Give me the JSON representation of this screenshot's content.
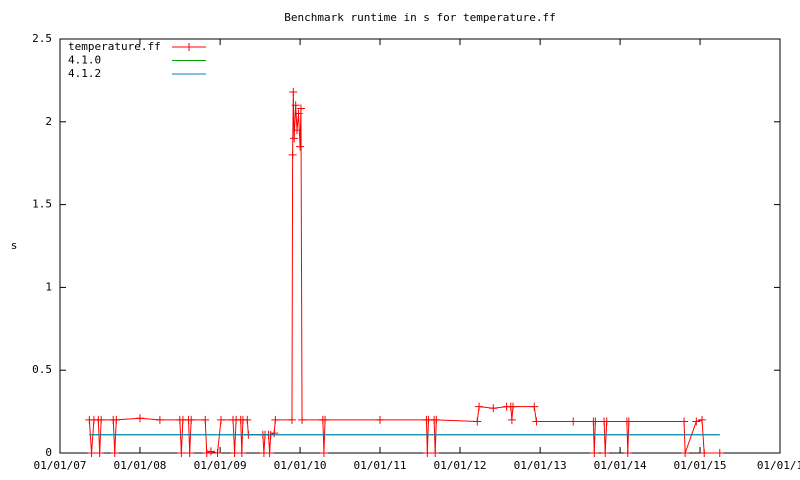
{
  "chart_data": {
    "type": "line",
    "title": "Benchmark runtime in s for temperature.ff",
    "ylabel": "s",
    "xlim": [
      "2007-01-01",
      "2016-01-01"
    ],
    "xticks": [
      {
        "value": "2007-01-01",
        "label": "01/01/07"
      },
      {
        "value": "2008-01-01",
        "label": "01/01/08"
      },
      {
        "value": "2009-01-01",
        "label": "01/01/09"
      },
      {
        "value": "2010-01-01",
        "label": "01/01/10"
      },
      {
        "value": "2011-01-01",
        "label": "01/01/11"
      },
      {
        "value": "2012-01-01",
        "label": "01/01/12"
      },
      {
        "value": "2013-01-01",
        "label": "01/01/13"
      },
      {
        "value": "2014-01-01",
        "label": "01/01/14"
      },
      {
        "value": "2015-01-01",
        "label": "01/01/15"
      },
      {
        "value": "2016-01-01",
        "label": "01/01/1"
      }
    ],
    "ylim": [
      0,
      2.5
    ],
    "yticks": [
      0,
      0.5,
      1,
      {
        "value": 1.5,
        "label": "1.5"
      },
      2,
      2.5
    ],
    "legend": "top-left",
    "series": [
      {
        "name": "temperature.ff",
        "color": "#ff0000",
        "points": true,
        "x": [
          "2007-05-15",
          "2007-05-25",
          "2007-06-05",
          "2007-06-25",
          "2007-07-01",
          "2007-07-08",
          "2007-09-01",
          "2007-09-08",
          "2007-09-15",
          "2008-01-01",
          "2008-04-01",
          "2008-07-01",
          "2008-07-08",
          "2008-07-15",
          "2008-08-10",
          "2008-08-15",
          "2008-08-22",
          "2008-10-25",
          "2008-11-01",
          "2008-11-20",
          "2008-12-20",
          "2009-01-05",
          "2009-03-01",
          "2009-03-08",
          "2009-03-15",
          "2009-04-05",
          "2009-04-10",
          "2009-04-15",
          "2009-05-05",
          "2009-05-10",
          "2009-07-15",
          "2009-07-20",
          "2009-07-25",
          "2009-08-10",
          "2009-08-15",
          "2009-08-20",
          "2009-09-05",
          "2009-09-10",
          "2009-11-25",
          "2009-11-28",
          "2009-12-01",
          "2009-12-05",
          "2009-12-12",
          "2009-12-18",
          "2009-12-25",
          "2010-01-01",
          "2010-01-05",
          "2010-01-10",
          "2010-04-15",
          "2010-04-20",
          "2010-04-25",
          "2011-01-01",
          "2011-08-01",
          "2011-08-05",
          "2011-08-10",
          "2011-09-05",
          "2011-09-10",
          "2011-09-15",
          "2012-03-20",
          "2012-03-28",
          "2012-06-01",
          "2012-08-01",
          "2012-08-20",
          "2012-08-25",
          "2012-08-30",
          "2012-12-05",
          "2012-12-15",
          "2013-06-01",
          "2013-09-01",
          "2013-09-05",
          "2013-09-10",
          "2013-10-20",
          "2013-10-25",
          "2013-11-01",
          "2014-02-01",
          "2014-02-05",
          "2014-02-10",
          "2014-10-20",
          "2014-10-25",
          "2014-12-15",
          "2015-01-10",
          "2015-01-20",
          "2015-04-01"
        ],
        "values": [
          0.2,
          0,
          0.2,
          0.2,
          0,
          0.2,
          0.2,
          0,
          0.2,
          0.21,
          0.2,
          0.2,
          0,
          0.2,
          0.2,
          0,
          0.2,
          0.2,
          0,
          0.01,
          0,
          0.2,
          0.2,
          0,
          0.2,
          0.2,
          0,
          0.2,
          0.2,
          0.11,
          0.11,
          0,
          0.11,
          0.11,
          0,
          0.11,
          0.12,
          0.2,
          0.2,
          1.8,
          2.18,
          1.9,
          2.1,
          1.95,
          2.05,
          1.85,
          2.08,
          0.2,
          0.2,
          0,
          0.2,
          0.2,
          0.2,
          0,
          0.2,
          0.2,
          0,
          0.2,
          0.19,
          0.28,
          0.27,
          0.28,
          0.28,
          0.2,
          0.28,
          0.28,
          0.19,
          0.19,
          0.19,
          0,
          0.19,
          0.19,
          0,
          0.19,
          0.19,
          0,
          0.19,
          0.19,
          0,
          0.19,
          0.2,
          0,
          0
        ]
      },
      {
        "name": "4.1.0",
        "color": "#00a000",
        "points": false,
        "x": [
          "2007-05-15",
          "2015-04-01"
        ],
        "values": [
          0.11,
          0.11
        ]
      },
      {
        "name": "4.1.2",
        "color": "#0080c0",
        "points": false,
        "x": [
          "2007-05-15",
          "2015-04-01"
        ],
        "values": [
          0.11,
          0.11
        ]
      }
    ]
  }
}
